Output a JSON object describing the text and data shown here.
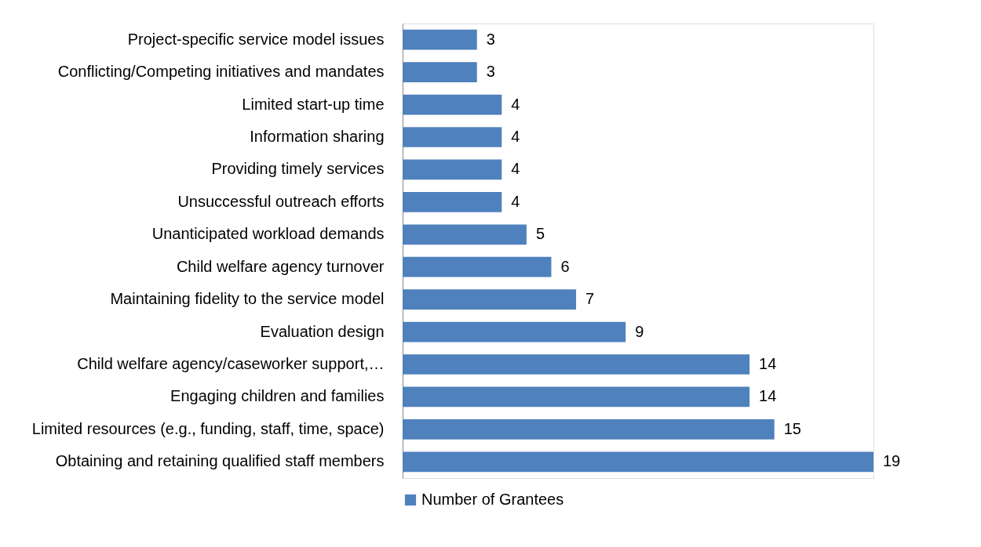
{
  "chart_data": {
    "type": "bar",
    "orientation": "horizontal",
    "categories": [
      "Project-specific service model issues",
      "Conflicting/Competing initiatives and mandates",
      "Limited start-up time",
      "Information sharing",
      "Providing timely services",
      "Unsuccessful outreach efforts",
      "Unanticipated workload demands",
      "Child welfare agency turnover",
      "Maintaining fidelity to the service model",
      "Evaluation design",
      "Child welfare agency/caseworker support,…",
      "Engaging children and families",
      "Limited resources (e.g., funding, staff, time, space)",
      "Obtaining and retaining qualified staff members"
    ],
    "series": [
      {
        "name": "Number of Grantees",
        "color": "#4f81bd",
        "values": [
          3,
          3,
          4,
          4,
          4,
          4,
          5,
          6,
          7,
          9,
          14,
          14,
          15,
          19
        ]
      }
    ],
    "data_labels": true,
    "legend": "bottom",
    "grid": false,
    "tick_labels": "y"
  }
}
